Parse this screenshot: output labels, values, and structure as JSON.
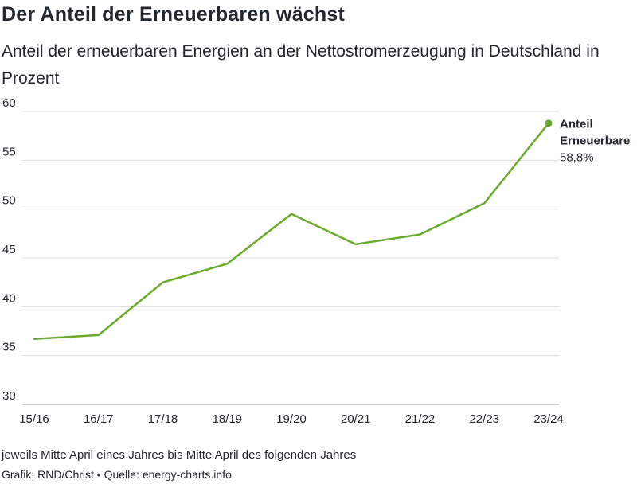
{
  "title": "Der Anteil der Erneuerbaren wächst",
  "subtitle": "Anteil der erneuerbaren Energien an der Nettostromerzeugung in Deutschland in Prozent",
  "footer": {
    "note": "jeweils Mitte April eines Jahres bis Mitte April des folgenden Jahres",
    "source": "Grafik: RND/Christ • Quelle: energy-charts.info"
  },
  "colors": {
    "line": "#6aaa2a",
    "grid": "#dcdcdc",
    "text": "#23282e"
  },
  "chart_data": {
    "type": "line",
    "title": "Der Anteil der Erneuerbaren wächst",
    "subtitle": "Anteil der erneuerbaren Energien an der Nettostromerzeugung in Deutschland in Prozent",
    "categories": [
      "15/16",
      "16/17",
      "17/18",
      "18/19",
      "19/20",
      "20/21",
      "21/22",
      "22/23",
      "23/24"
    ],
    "series": [
      {
        "name": "Anteil Erneuerbare",
        "values": [
          36.7,
          37.1,
          42.5,
          44.4,
          49.5,
          46.4,
          47.4,
          50.6,
          58.8
        ]
      }
    ],
    "end_label": {
      "line1": "Anteil",
      "line2": "Erneuerbare",
      "value": "58,8%"
    },
    "yticks": [
      30,
      35,
      40,
      45,
      50,
      55,
      60
    ],
    "ylim": [
      30,
      60
    ],
    "grid": true,
    "xlabel": "",
    "ylabel": ""
  }
}
